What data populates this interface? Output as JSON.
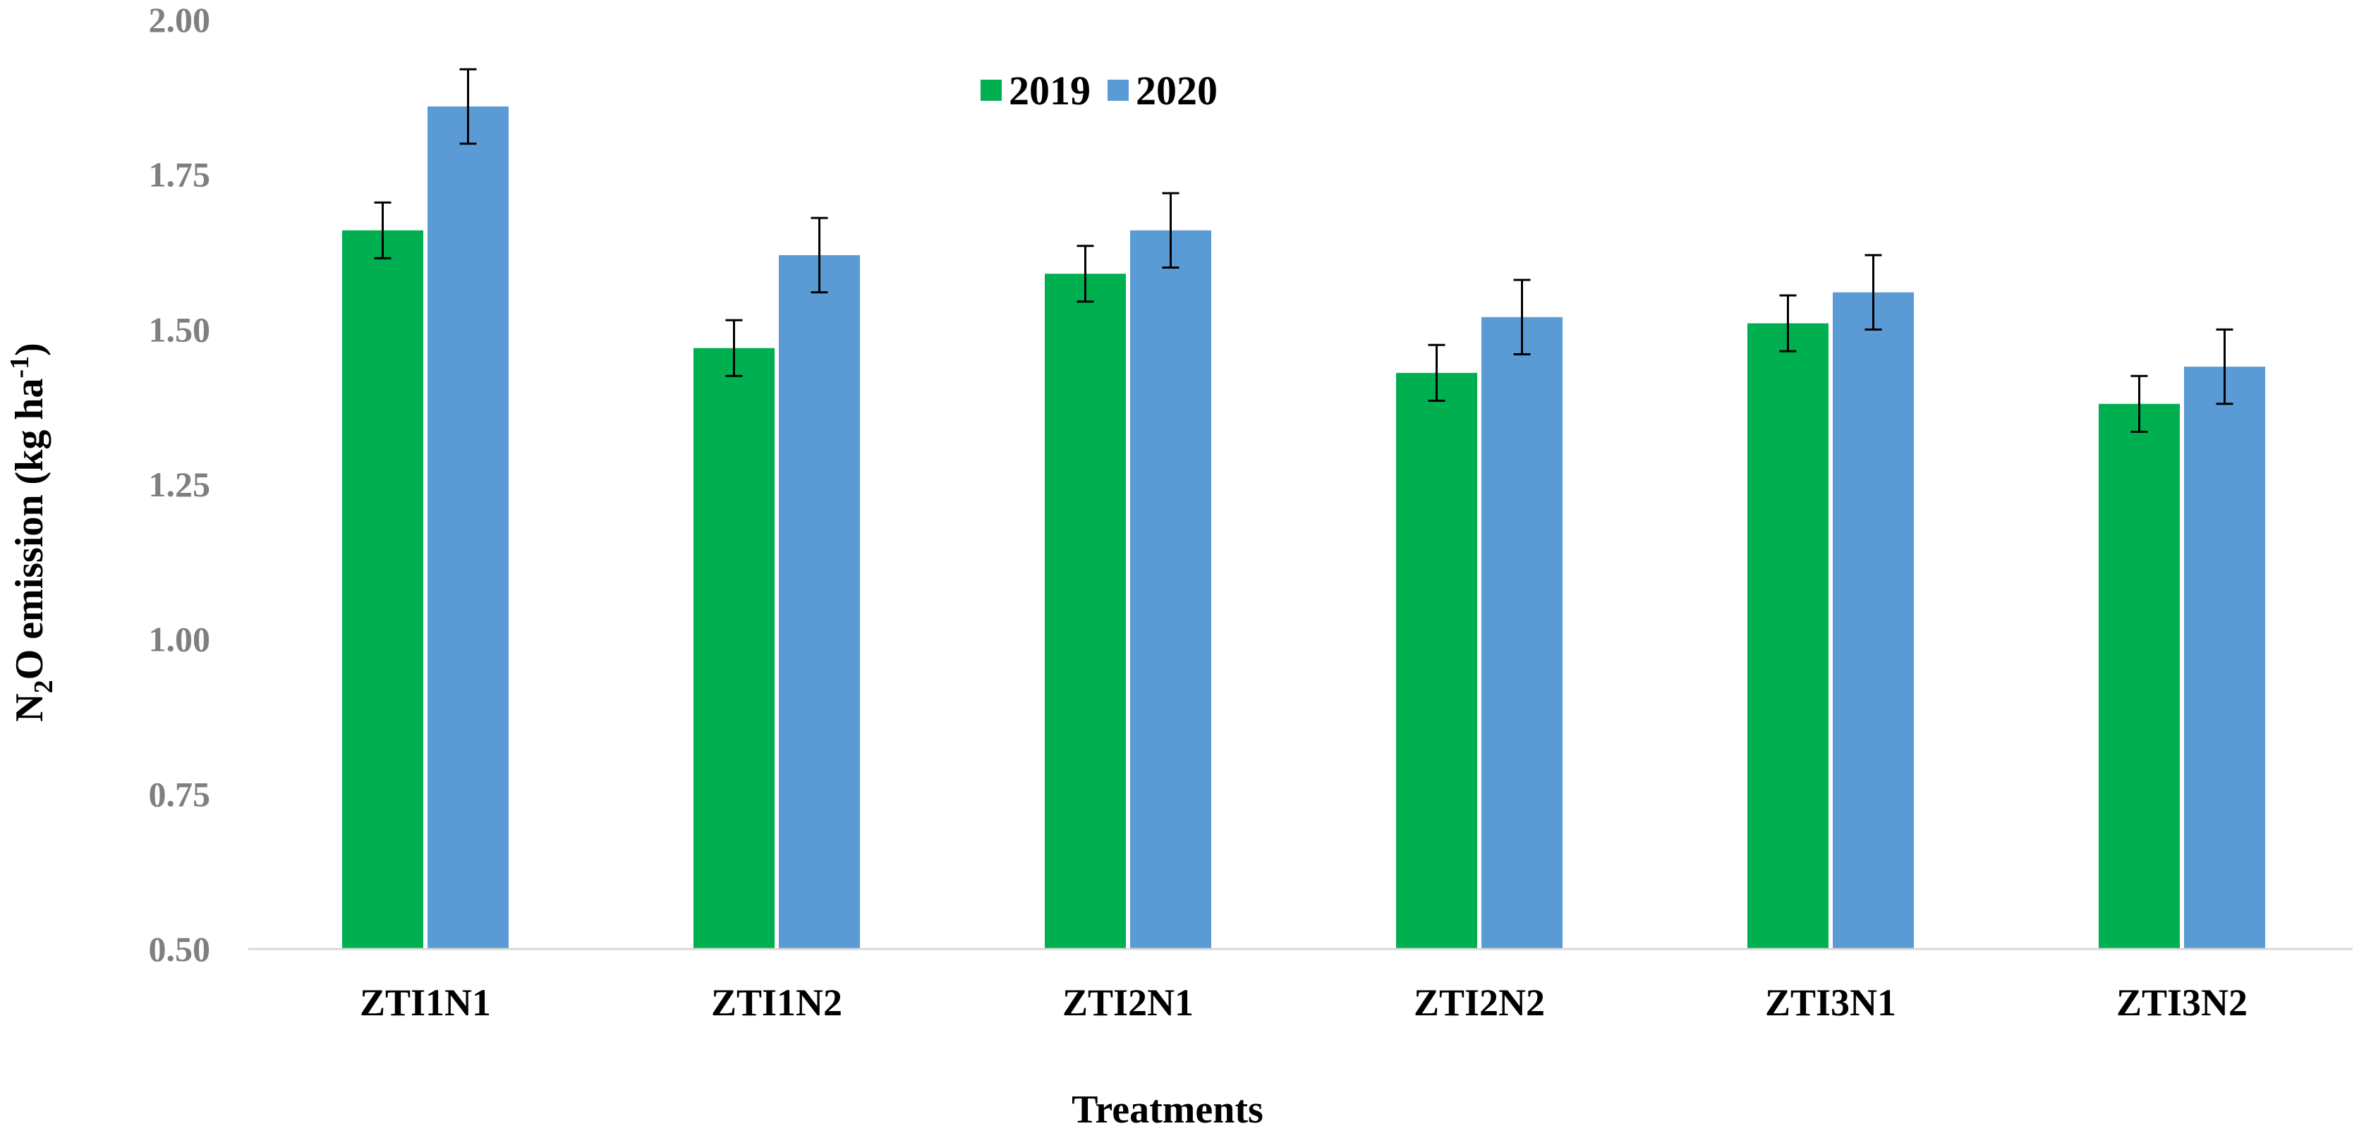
{
  "chart_data": {
    "type": "bar",
    "title": "",
    "xlabel": "Treatments",
    "ylabel": {
      "prefix": "N",
      "subscript": "2",
      "middle": "O emission (kg ha",
      "superscript": "-1",
      "suffix": ")"
    },
    "categories": [
      "ZTI1N1",
      "ZTI1N2",
      "ZTI2N1",
      "ZTI2N2",
      "ZTI3N1",
      "ZTI3N2"
    ],
    "ylim": [
      0.5,
      2.0
    ],
    "yticks": [
      "0.50",
      "0.75",
      "1.00",
      "1.25",
      "1.50",
      "1.75",
      "2.00"
    ],
    "series": [
      {
        "name": "2019",
        "color": "#00b050",
        "values": [
          1.66,
          1.47,
          1.59,
          1.43,
          1.51,
          1.38
        ],
        "errors": [
          0.045,
          0.045,
          0.045,
          0.045,
          0.045,
          0.045
        ]
      },
      {
        "name": "2020",
        "color": "#5b9bd5",
        "values": [
          1.86,
          1.62,
          1.66,
          1.52,
          1.56,
          1.44
        ],
        "errors": [
          0.06,
          0.06,
          0.06,
          0.06,
          0.06,
          0.06
        ]
      }
    ],
    "legend_position": "top-center",
    "grid": false,
    "axis_color": "#d9d9d9",
    "error_bar_color": "#000000"
  }
}
